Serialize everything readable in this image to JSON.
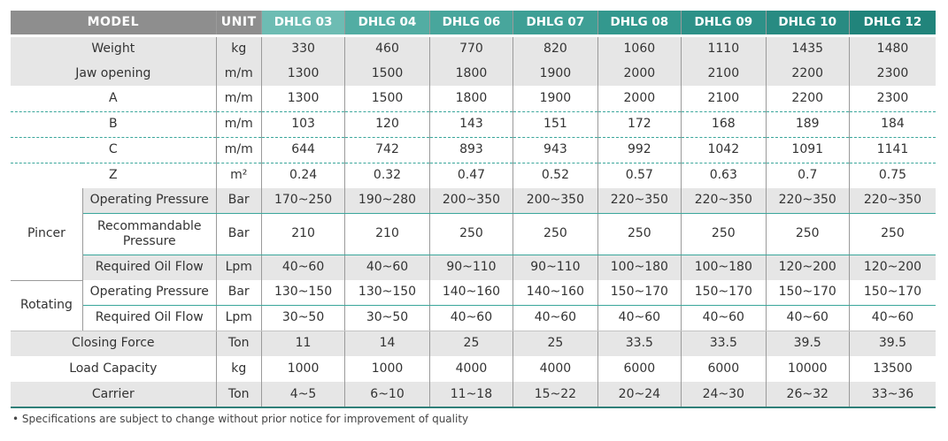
{
  "colors": {
    "header_gray": "#8e8e8e",
    "teal": "#3aa69b",
    "row_shade": "#e6e6e6"
  },
  "header": {
    "model": "MODEL",
    "unit": "UNIT",
    "models": [
      "DHLG 03",
      "DHLG 04",
      "DHLG 06",
      "DHLG 07",
      "DHLG 08",
      "DHLG 09",
      "DHLG 10",
      "DHLG 12"
    ]
  },
  "groups": {
    "pincer": "Pincer",
    "rotating": "Rotating"
  },
  "rows": [
    {
      "label": "Weight",
      "unit": "kg",
      "values": [
        "330",
        "460",
        "770",
        "820",
        "1060",
        "1110",
        "1435",
        "1480"
      ]
    },
    {
      "label": "Jaw opening",
      "unit": "m/m",
      "values": [
        "1300",
        "1500",
        "1800",
        "1900",
        "2000",
        "2100",
        "2200",
        "2300"
      ]
    },
    {
      "label": "A",
      "unit": "m/m",
      "values": [
        "1300",
        "1500",
        "1800",
        "1900",
        "2000",
        "2100",
        "2200",
        "2300"
      ]
    },
    {
      "label": "B",
      "unit": "m/m",
      "values": [
        "103",
        "120",
        "143",
        "151",
        "172",
        "168",
        "189",
        "184"
      ]
    },
    {
      "label": "C",
      "unit": "m/m",
      "values": [
        "644",
        "742",
        "893",
        "943",
        "992",
        "1042",
        "1091",
        "1141"
      ]
    },
    {
      "label": "Z",
      "unit": "m²",
      "values": [
        "0.24",
        "0.32",
        "0.47",
        "0.52",
        "0.57",
        "0.63",
        "0.7",
        "0.75"
      ]
    },
    {
      "label": "Operating Pressure",
      "unit": "Bar",
      "values": [
        "170~250",
        "190~280",
        "200~350",
        "200~350",
        "220~350",
        "220~350",
        "220~350",
        "220~350"
      ]
    },
    {
      "label": "Recommandable Pressure",
      "unit": "Bar",
      "values": [
        "210",
        "210",
        "250",
        "250",
        "250",
        "250",
        "250",
        "250"
      ]
    },
    {
      "label": "Required Oil Flow",
      "unit": "Lpm",
      "values": [
        "40~60",
        "40~60",
        "90~110",
        "90~110",
        "100~180",
        "100~180",
        "120~200",
        "120~200"
      ]
    },
    {
      "label": "Operating Pressure",
      "unit": "Bar",
      "values": [
        "130~150",
        "130~150",
        "140~160",
        "140~160",
        "150~170",
        "150~170",
        "150~170",
        "150~170"
      ]
    },
    {
      "label": "Required Oil Flow",
      "unit": "Lpm",
      "values": [
        "30~50",
        "30~50",
        "40~60",
        "40~60",
        "40~60",
        "40~60",
        "40~60",
        "40~60"
      ]
    },
    {
      "label": "Closing Force",
      "unit": "Ton",
      "values": [
        "11",
        "14",
        "25",
        "25",
        "33.5",
        "33.5",
        "39.5",
        "39.5"
      ]
    },
    {
      "label": "Load Capacity",
      "unit": "kg",
      "values": [
        "1000",
        "1000",
        "4000",
        "4000",
        "6000",
        "6000",
        "10000",
        "13500"
      ]
    },
    {
      "label": "Carrier",
      "unit": "Ton",
      "values": [
        "4~5",
        "6~10",
        "11~18",
        "15~22",
        "20~24",
        "24~30",
        "26~32",
        "33~36"
      ]
    }
  ],
  "note": "• Specifications are subject to change without prior notice for improvement of quality"
}
